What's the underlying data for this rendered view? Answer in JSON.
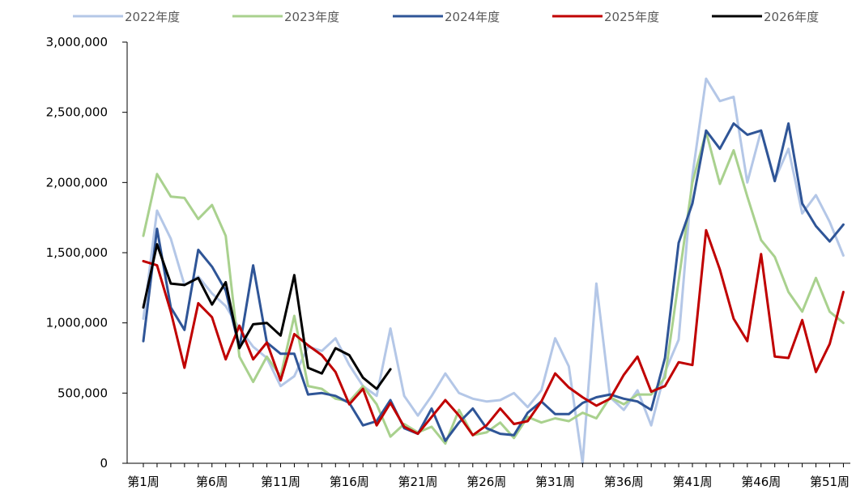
{
  "chart_data": {
    "type": "line",
    "title": "",
    "xlabel": "",
    "ylabel": "",
    "ylim": [
      0,
      3000000
    ],
    "y_ticks": [
      0,
      500000,
      1000000,
      1500000,
      2000000,
      2500000,
      3000000
    ],
    "y_tick_labels": [
      "0",
      "500,000",
      "1,000,000",
      "1,500,000",
      "2,000,000",
      "2,500,000",
      "3,000,000"
    ],
    "x_tick_labels": [
      "第1周",
      "第6周",
      "第11周",
      "第16周",
      "第21周",
      "第26周",
      "第31周",
      "第36周",
      "第41周",
      "第46周",
      "第51周"
    ],
    "x_tick_weeks": [
      1,
      6,
      11,
      16,
      21,
      26,
      31,
      36,
      41,
      46,
      51
    ],
    "x_max_week": 53,
    "grid": false,
    "legend_position": "top",
    "series": [
      {
        "name": "2022年度",
        "color": "#B4C7E7",
        "values": [
          1030000,
          1800000,
          1600000,
          1270000,
          1330000,
          1210000,
          1120000,
          960000,
          830000,
          750000,
          550000,
          620000,
          830000,
          800000,
          890000,
          700000,
          550000,
          480000,
          960000,
          480000,
          340000,
          480000,
          640000,
          500000,
          460000,
          440000,
          450000,
          500000,
          400000,
          520000,
          890000,
          690000,
          0,
          1280000,
          470000,
          380000,
          520000,
          270000,
          650000,
          880000,
          2050000,
          2740000,
          2580000,
          2610000,
          2000000,
          2370000,
          2020000,
          2240000,
          1780000,
          1910000,
          1720000,
          1480000
        ]
      },
      {
        "name": "2023年度",
        "color": "#A9D18E",
        "values": [
          1620000,
          2060000,
          1900000,
          1890000,
          1740000,
          1840000,
          1620000,
          760000,
          580000,
          760000,
          620000,
          1050000,
          550000,
          530000,
          460000,
          440000,
          550000,
          420000,
          190000,
          280000,
          220000,
          260000,
          140000,
          380000,
          200000,
          220000,
          290000,
          180000,
          330000,
          290000,
          320000,
          300000,
          360000,
          320000,
          470000,
          420000,
          490000,
          490000,
          610000,
          1300000,
          2000000,
          2360000,
          1990000,
          2230000,
          1900000,
          1590000,
          1470000,
          1220000,
          1080000,
          1320000,
          1080000,
          1000000
        ]
      },
      {
        "name": "2024年度",
        "color": "#2F5597",
        "values": [
          870000,
          1670000,
          1110000,
          950000,
          1520000,
          1400000,
          1230000,
          820000,
          1410000,
          860000,
          780000,
          780000,
          490000,
          500000,
          480000,
          430000,
          270000,
          300000,
          450000,
          250000,
          210000,
          390000,
          160000,
          290000,
          390000,
          250000,
          210000,
          200000,
          360000,
          440000,
          350000,
          350000,
          430000,
          470000,
          490000,
          460000,
          440000,
          380000,
          750000,
          1570000,
          1850000,
          2370000,
          2240000,
          2420000,
          2340000,
          2370000,
          2010000,
          2420000,
          1850000,
          1690000,
          1580000,
          1700000
        ]
      },
      {
        "name": "2025年度",
        "color": "#C00000",
        "values": [
          1440000,
          1410000,
          1080000,
          680000,
          1140000,
          1040000,
          740000,
          980000,
          740000,
          860000,
          590000,
          920000,
          840000,
          770000,
          650000,
          420000,
          530000,
          270000,
          430000,
          260000,
          210000,
          330000,
          450000,
          340000,
          200000,
          270000,
          390000,
          280000,
          300000,
          440000,
          640000,
          540000,
          470000,
          410000,
          460000,
          630000,
          760000,
          510000,
          550000,
          720000,
          700000,
          1660000,
          1380000,
          1030000,
          870000,
          1490000,
          760000,
          750000,
          1020000,
          650000,
          850000,
          1220000
        ]
      },
      {
        "name": "2026年度",
        "color": "#000000",
        "values": [
          1110000,
          1560000,
          1280000,
          1270000,
          1320000,
          1130000,
          1290000,
          820000,
          990000,
          1000000,
          910000,
          1340000,
          680000,
          640000,
          820000,
          770000,
          610000,
          530000,
          670000
        ]
      }
    ]
  }
}
